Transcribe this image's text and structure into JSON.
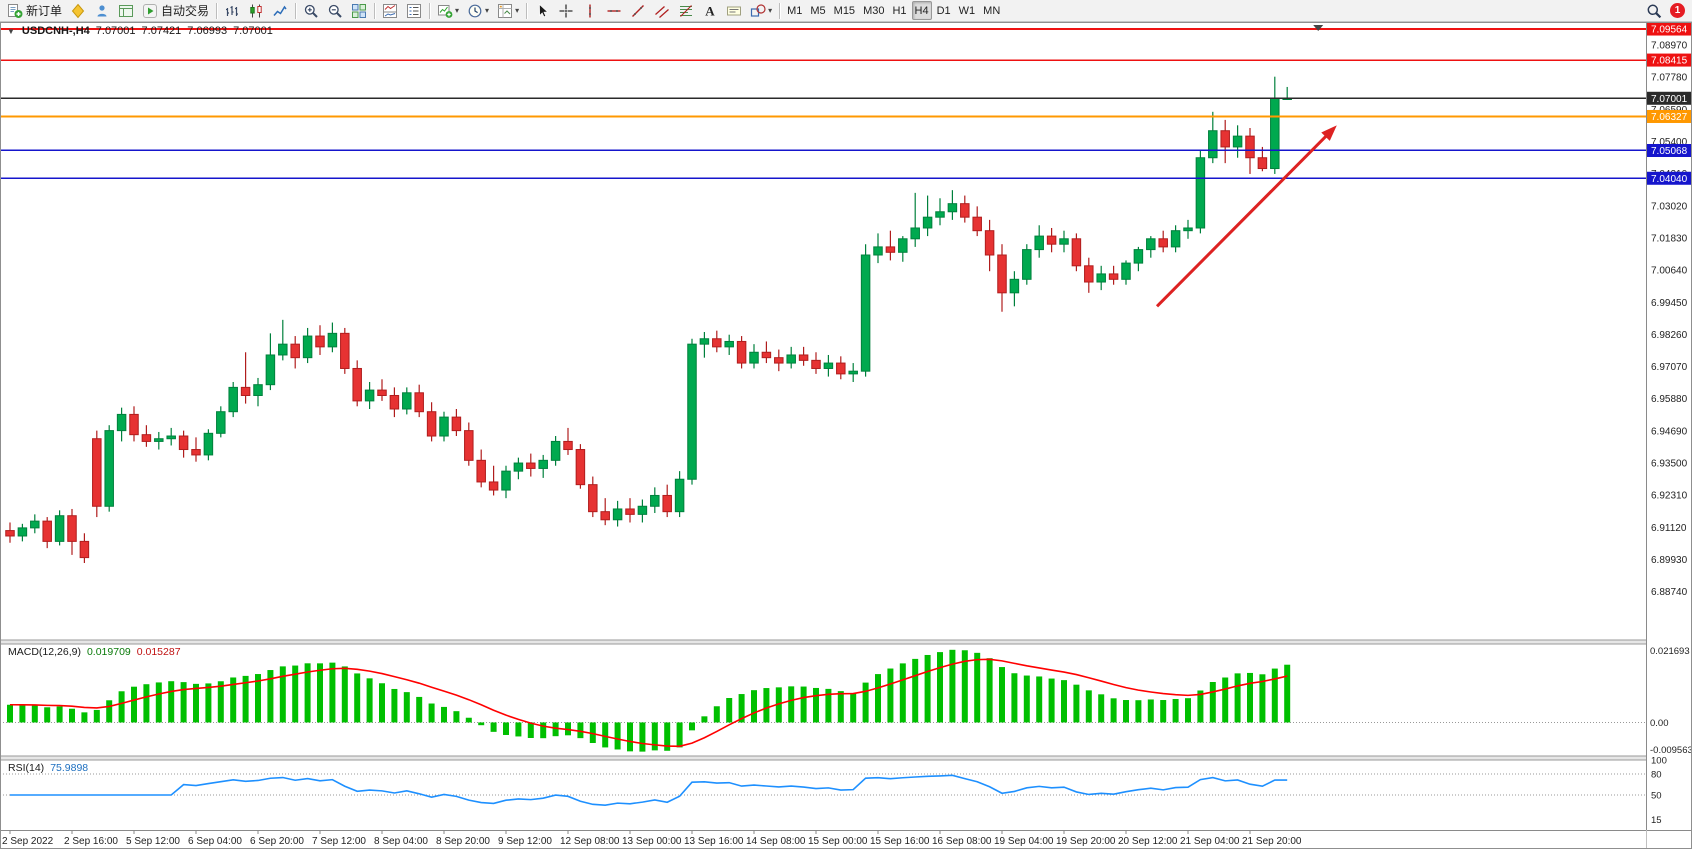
{
  "toolbar": {
    "groups": [
      {
        "items": [
          {
            "name": "new-order-button",
            "icon": "new-order",
            "label": "新订单"
          },
          {
            "name": "metaeditor-button",
            "icon": "metaeditor"
          },
          {
            "name": "navigator-button",
            "icon": "navigator"
          },
          {
            "name": "terminal-button",
            "icon": "terminal"
          },
          {
            "name": "autotrading-button",
            "icon": "play",
            "label": "自动交易"
          }
        ]
      },
      {
        "items": [
          {
            "name": "bar-chart-button",
            "icon": "bar-chart"
          },
          {
            "name": "candlestick-chart-button",
            "icon": "candles"
          },
          {
            "name": "line-chart-button",
            "icon": "line-chart"
          }
        ]
      },
      {
        "items": [
          {
            "name": "zoom-in-button",
            "icon": "zoom-in"
          },
          {
            "name": "zoom-out-button",
            "icon": "zoom-out"
          },
          {
            "name": "tile-windows-button",
            "icon": "tile"
          }
        ]
      },
      {
        "items": [
          {
            "name": "indicator-window-button",
            "icon": "ind-window"
          },
          {
            "name": "indicator-list-button",
            "icon": "ind-list"
          }
        ]
      },
      {
        "items": [
          {
            "name": "new-chart-button",
            "icon": "new-chart",
            "dropdown": true
          },
          {
            "name": "periods-button",
            "icon": "clock",
            "dropdown": true
          },
          {
            "name": "templates-button",
            "icon": "template",
            "dropdown": true
          }
        ]
      },
      {
        "items": [
          {
            "name": "cursor-tool",
            "icon": "cursor"
          },
          {
            "name": "crosshair-tool",
            "icon": "crosshair"
          },
          {
            "name": "vertical-line-tool",
            "icon": "vline"
          },
          {
            "name": "horizontal-line-tool",
            "icon": "hline"
          },
          {
            "name": "trendline-tool",
            "icon": "trendline"
          },
          {
            "name": "channel-tool",
            "icon": "channel"
          },
          {
            "name": "fibonacci-tool",
            "icon": "fibonacci"
          },
          {
            "name": "text-tool",
            "icon": "text"
          },
          {
            "name": "text-label-tool",
            "icon": "label"
          },
          {
            "name": "shapes-tool",
            "icon": "shapes",
            "dropdown": true
          }
        ]
      },
      {
        "items": [
          {
            "name": "timeframe-m1",
            "label": "M1"
          },
          {
            "name": "timeframe-m5",
            "label": "M5"
          },
          {
            "name": "timeframe-m15",
            "label": "M15"
          },
          {
            "name": "timeframe-m30",
            "label": "M30"
          },
          {
            "name": "timeframe-h1",
            "label": "H1"
          },
          {
            "name": "timeframe-h4",
            "label": "H4",
            "active": true
          },
          {
            "name": "timeframe-d1",
            "label": "D1"
          },
          {
            "name": "timeframe-w1",
            "label": "W1"
          },
          {
            "name": "timeframe-mn",
            "label": "MN"
          }
        ]
      },
      {
        "align": "right",
        "items": [
          {
            "name": "search-button",
            "icon": "search"
          },
          {
            "name": "notifications-button",
            "badge": "1"
          }
        ]
      }
    ]
  },
  "chart": {
    "one_click_glyph": "▼",
    "symbol_period": "USDCNH-,H4",
    "ohlc": {
      "open": "7.07001",
      "high": "7.07421",
      "low": "7.06993",
      "close": "7.07001"
    },
    "colors": {
      "candle_up": "#00a94f",
      "candle_up_border": "#00803c",
      "candle_down": "#e63232",
      "candle_down_border": "#b01d1d",
      "macd_bar": "#00bf00",
      "macd_signal": "#ff0000",
      "rsi_line": "#1e90ff"
    },
    "price_scale_ticks": [
      "7.08970",
      "7.07780",
      "7.06590",
      "7.05400",
      "7.04210",
      "7.03020",
      "7.01830",
      "7.00640",
      "6.99450",
      "6.98260",
      "6.97070",
      "6.95880",
      "6.94690",
      "6.93500",
      "6.92310",
      "6.91120",
      "6.89930",
      "6.88740"
    ],
    "lines": [
      {
        "name": "resistance-line-1",
        "price": 7.09564,
        "label": "7.09564",
        "color": "#ee1111",
        "width": 1.6
      },
      {
        "name": "resistance-line-2",
        "price": 7.08415,
        "label": "7.08415",
        "color": "#ee1111",
        "width": 1.6
      },
      {
        "name": "current-price-line",
        "price": 7.07001,
        "label": "7.07001",
        "color": "#2a2a2a",
        "width": 1.1
      },
      {
        "name": "orange-level-line",
        "price": 7.06327,
        "label": "7.06327",
        "color": "#ff9800",
        "width": 1.8
      },
      {
        "name": "support-line-1",
        "price": 7.05068,
        "label": "7.05068",
        "color": "#1515cc",
        "width": 1.5
      },
      {
        "name": "support-line-2",
        "price": 7.0404,
        "label": "7.04040",
        "color": "#1515cc",
        "width": 1.5
      }
    ],
    "shift_marker_bar": 105.5,
    "date_labels": [
      "2 Sep 2022",
      "2 Sep 16:00",
      "5 Sep 12:00",
      "6 Sep 04:00",
      "6 Sep 20:00",
      "7 Sep 12:00",
      "8 Sep 04:00",
      "8 Sep 20:00",
      "9 Sep 12:00",
      "12 Sep 08:00",
      "13 Sep 00:00",
      "13 Sep 16:00",
      "14 Sep 08:00",
      "15 Sep 00:00",
      "15 Sep 16:00",
      "16 Sep 08:00",
      "19 Sep 04:00",
      "19 Sep 20:00",
      "20 Sep 12:00",
      "21 Sep 04:00",
      "21 Sep 20:00"
    ]
  },
  "chart_data": {
    "type": "candlestick",
    "symbol": "USDCNH",
    "timeframe": "H4",
    "y_range": [
      6.8695,
      7.0975
    ],
    "candles": [
      [
        6.91,
        6.913,
        6.9055,
        6.908
      ],
      [
        6.908,
        6.9125,
        6.906,
        6.911
      ],
      [
        6.911,
        6.916,
        6.909,
        6.9135
      ],
      [
        6.9135,
        6.915,
        6.9035,
        6.906
      ],
      [
        6.906,
        6.9175,
        6.9045,
        6.9155
      ],
      [
        6.9155,
        6.918,
        6.901,
        6.906
      ],
      [
        6.906,
        6.909,
        6.898,
        6.9
      ],
      [
        6.944,
        6.947,
        6.915,
        6.919
      ],
      [
        6.919,
        6.949,
        6.917,
        6.947
      ],
      [
        6.947,
        6.9555,
        6.943,
        6.953
      ],
      [
        6.953,
        6.956,
        6.943,
        6.9455
      ],
      [
        6.9455,
        6.949,
        6.941,
        6.943
      ],
      [
        6.943,
        6.9465,
        6.94,
        6.944
      ],
      [
        6.944,
        6.948,
        6.9415,
        6.945
      ],
      [
        6.945,
        6.947,
        6.937,
        6.94
      ],
      [
        6.94,
        6.9445,
        6.9355,
        6.938
      ],
      [
        6.938,
        6.9475,
        6.936,
        6.946
      ],
      [
        6.946,
        6.956,
        6.9445,
        6.954
      ],
      [
        6.954,
        6.965,
        6.952,
        6.963
      ],
      [
        6.963,
        6.976,
        6.957,
        6.96
      ],
      [
        6.96,
        6.9665,
        6.956,
        6.964
      ],
      [
        6.964,
        6.983,
        6.962,
        6.975
      ],
      [
        6.975,
        6.988,
        6.973,
        6.979
      ],
      [
        6.979,
        6.982,
        6.97,
        6.974
      ],
      [
        6.974,
        6.985,
        6.972,
        6.982
      ],
      [
        6.982,
        6.986,
        6.975,
        6.978
      ],
      [
        6.978,
        6.987,
        6.976,
        6.983
      ],
      [
        6.983,
        6.985,
        6.968,
        6.97
      ],
      [
        6.97,
        6.973,
        6.956,
        6.958
      ],
      [
        6.958,
        6.965,
        6.955,
        6.962
      ],
      [
        6.962,
        6.966,
        6.958,
        6.96
      ],
      [
        6.96,
        6.963,
        6.952,
        6.955
      ],
      [
        6.955,
        6.963,
        6.953,
        6.961
      ],
      [
        6.961,
        6.964,
        6.952,
        6.954
      ],
      [
        6.954,
        6.9575,
        6.943,
        6.945
      ],
      [
        6.945,
        6.954,
        6.943,
        6.952
      ],
      [
        6.952,
        6.955,
        6.945,
        6.947
      ],
      [
        6.947,
        6.95,
        6.934,
        6.936
      ],
      [
        6.936,
        6.94,
        6.926,
        6.928
      ],
      [
        6.928,
        6.934,
        6.923,
        6.925
      ],
      [
        6.925,
        6.934,
        6.922,
        6.932
      ],
      [
        6.932,
        6.937,
        6.929,
        6.935
      ],
      [
        6.935,
        6.9385,
        6.93,
        6.933
      ],
      [
        6.933,
        6.938,
        6.9295,
        6.936
      ],
      [
        6.936,
        6.945,
        6.934,
        6.943
      ],
      [
        6.943,
        6.948,
        6.938,
        6.94
      ],
      [
        6.94,
        6.942,
        6.9255,
        6.927
      ],
      [
        6.927,
        6.93,
        6.915,
        6.917
      ],
      [
        6.917,
        6.922,
        6.912,
        6.914
      ],
      [
        6.914,
        6.921,
        6.9115,
        6.918
      ],
      [
        6.918,
        6.922,
        6.913,
        6.916
      ],
      [
        6.916,
        6.9215,
        6.913,
        6.919
      ],
      [
        6.919,
        6.926,
        6.9165,
        6.923
      ],
      [
        6.923,
        6.927,
        6.915,
        6.917
      ],
      [
        6.917,
        6.932,
        6.915,
        6.929
      ],
      [
        6.929,
        6.981,
        6.927,
        6.979
      ],
      [
        6.979,
        6.9835,
        6.974,
        6.981
      ],
      [
        6.981,
        6.984,
        6.976,
        6.978
      ],
      [
        6.978,
        6.9825,
        6.975,
        6.98
      ],
      [
        6.98,
        6.982,
        6.97,
        6.972
      ],
      [
        6.972,
        6.979,
        6.97,
        6.976
      ],
      [
        6.976,
        6.98,
        6.972,
        6.974
      ],
      [
        6.974,
        6.977,
        6.969,
        6.972
      ],
      [
        6.972,
        6.978,
        6.97,
        6.975
      ],
      [
        6.975,
        6.978,
        6.971,
        6.973
      ],
      [
        6.973,
        6.976,
        6.968,
        6.97
      ],
      [
        6.97,
        6.975,
        6.967,
        6.972
      ],
      [
        6.972,
        6.9745,
        6.966,
        6.968
      ],
      [
        6.968,
        6.972,
        6.965,
        6.969
      ],
      [
        6.969,
        7.016,
        6.967,
        7.012
      ],
      [
        7.012,
        7.02,
        7.009,
        7.015
      ],
      [
        7.015,
        7.021,
        7.01,
        7.013
      ],
      [
        7.013,
        7.019,
        7.0095,
        7.018
      ],
      [
        7.018,
        7.035,
        7.015,
        7.022
      ],
      [
        7.022,
        7.034,
        7.019,
        7.026
      ],
      [
        7.026,
        7.033,
        7.023,
        7.028
      ],
      [
        7.028,
        7.036,
        7.025,
        7.031
      ],
      [
        7.031,
        7.034,
        7.024,
        7.026
      ],
      [
        7.026,
        7.03,
        7.019,
        7.021
      ],
      [
        7.021,
        7.025,
        7.006,
        7.012
      ],
      [
        7.012,
        7.016,
        6.991,
        6.998
      ],
      [
        6.998,
        7.006,
        6.993,
        7.003
      ],
      [
        7.003,
        7.016,
        7.001,
        7.014
      ],
      [
        7.014,
        7.023,
        7.011,
        7.019
      ],
      [
        7.019,
        7.022,
        7.013,
        7.016
      ],
      [
        7.016,
        7.021,
        7.013,
        7.018
      ],
      [
        7.018,
        7.02,
        7.006,
        7.008
      ],
      [
        7.008,
        7.011,
        6.998,
        7.002
      ],
      [
        7.002,
        7.008,
        6.999,
        7.005
      ],
      [
        7.005,
        7.008,
        7.001,
        7.003
      ],
      [
        7.003,
        7.01,
        7.001,
        7.009
      ],
      [
        7.009,
        7.015,
        7.006,
        7.014
      ],
      [
        7.014,
        7.019,
        7.011,
        7.018
      ],
      [
        7.018,
        7.021,
        7.013,
        7.015
      ],
      [
        7.015,
        7.023,
        7.013,
        7.021
      ],
      [
        7.021,
        7.025,
        7.018,
        7.022
      ],
      [
        7.022,
        7.051,
        7.02,
        7.048
      ],
      [
        7.048,
        7.065,
        7.046,
        7.058
      ],
      [
        7.058,
        7.062,
        7.046,
        7.052
      ],
      [
        7.052,
        7.06,
        7.048,
        7.056
      ],
      [
        7.056,
        7.059,
        7.042,
        7.048
      ],
      [
        7.048,
        7.052,
        7.043,
        7.044
      ],
      [
        7.044,
        7.078,
        7.042,
        7.07
      ],
      [
        7.07,
        7.0742,
        7.0699,
        7.07
      ]
    ],
    "indicators": {
      "macd": {
        "label": "MACD(12,26,9)",
        "fast": 12,
        "slow": 26,
        "signal": 9,
        "current_main": "0.019709",
        "current_signal": "0.015287",
        "scale_ticks": [
          "0.021693",
          "0.00",
          "-0.009563"
        ]
      },
      "rsi": {
        "label": "RSI(14)",
        "period": 14,
        "current": "75.9898",
        "levels": [
          80,
          50
        ],
        "scale_ticks": [
          "100",
          "80",
          "50",
          "15"
        ]
      }
    },
    "annotations": [
      {
        "type": "arrow",
        "from_bar": 92.5,
        "from_price": 6.993,
        "to_bar": 107,
        "to_price": 7.06,
        "color": "#dd2222",
        "width": 3
      }
    ]
  }
}
